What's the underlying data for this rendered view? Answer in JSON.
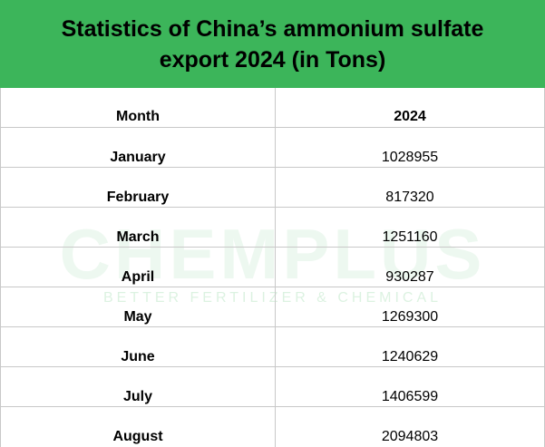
{
  "header": {
    "title": [
      "Statistics of China’s ammonium sulfate",
      "export 2024 (in Tons)"
    ]
  },
  "watermark": {
    "name": "CHEMPLUS",
    "tagline": "BETTER FERTILIZER & CHEMICAL"
  },
  "table": {
    "columns": [
      "Month",
      "2024"
    ],
    "rows": [
      [
        "January",
        1028955
      ],
      [
        "February",
        817320
      ],
      [
        "March",
        1251160
      ],
      [
        "April",
        930287
      ],
      [
        "May",
        1269300
      ],
      [
        "June",
        1240629
      ],
      [
        "July",
        1406599
      ],
      [
        "August",
        2094803
      ]
    ]
  }
}
